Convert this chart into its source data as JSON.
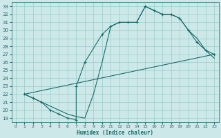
{
  "xlabel": "Humidex (Indice chaleur)",
  "bg_color": "#cce8e8",
  "grid_color": "#99cccc",
  "line_color": "#1a6b6b",
  "xlim": [
    -0.5,
    23.5
  ],
  "ylim": [
    18.5,
    33.5
  ],
  "yticks": [
    19,
    20,
    21,
    22,
    23,
    24,
    25,
    26,
    27,
    28,
    29,
    30,
    31,
    32,
    33
  ],
  "xticks": [
    0,
    1,
    2,
    3,
    4,
    5,
    6,
    7,
    8,
    9,
    10,
    11,
    12,
    13,
    14,
    15,
    16,
    17,
    18,
    19,
    20,
    21,
    22,
    23
  ],
  "line1_x": [
    1,
    2,
    3,
    4,
    5,
    6,
    7,
    7,
    8,
    10,
    11,
    12,
    13,
    14,
    15,
    16,
    17,
    18,
    19,
    20,
    21,
    22,
    23
  ],
  "line1_y": [
    22,
    21.5,
    21,
    20,
    19.5,
    19,
    18.8,
    23,
    26,
    29.5,
    30.5,
    31,
    31,
    31,
    33,
    32.5,
    32,
    32,
    31.5,
    30,
    28.5,
    27.5,
    27
  ],
  "line2_x": [
    1,
    2,
    3,
    4,
    5,
    6,
    7,
    8,
    9,
    10,
    11,
    12,
    13,
    14,
    15,
    16,
    17,
    18,
    19,
    20,
    21,
    22,
    23
  ],
  "line2_y": [
    22,
    21.5,
    21,
    20.5,
    20,
    19.5,
    19.2,
    19,
    22,
    26,
    30.5,
    31,
    31,
    31,
    33,
    32.5,
    32,
    32,
    31.5,
    30,
    29,
    27.5,
    26.5
  ],
  "line3_x": [
    1,
    23
  ],
  "line3_y": [
    22,
    27
  ]
}
